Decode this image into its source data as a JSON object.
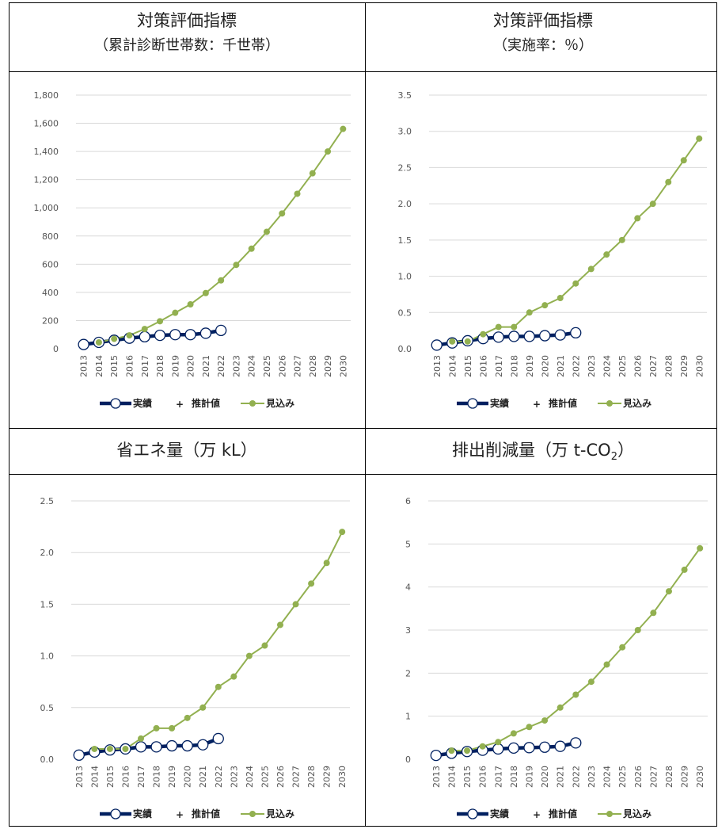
{
  "panels": [
    {
      "title": "対策評価指標",
      "subtitle": "（累計診断世帯数：千世帯）"
    },
    {
      "title": "対策評価指標",
      "subtitle": "（実施率：％）"
    },
    {
      "title": "省エネ量（万 kL）",
      "subtitle": ""
    },
    {
      "title_main": "排出削減量（万 t-CO",
      "title_sub": "2",
      "title_end": "）",
      "subtitle": ""
    }
  ],
  "legend": {
    "actual": "実績",
    "estimate": "推計値",
    "projection": "見込み"
  },
  "colors": {
    "actual": "#002060",
    "projection": "#92B050"
  },
  "chart_data": [
    {
      "type": "line",
      "x": [
        "2013",
        "2014",
        "2015",
        "2016",
        "2017",
        "2018",
        "2019",
        "2020",
        "2021",
        "2022",
        "2023",
        "2024",
        "2025",
        "2026",
        "2027",
        "2028",
        "2029",
        "2030"
      ],
      "ylim": [
        0,
        1800
      ],
      "yticks": [
        "0",
        "200",
        "400",
        "600",
        "800",
        "1,000",
        "1,200",
        "1,400",
        "1,600",
        "1,800"
      ],
      "ytick_values": [
        0,
        200,
        400,
        600,
        800,
        1000,
        1200,
        1400,
        1600,
        1800
      ],
      "series": [
        {
          "name": "実績",
          "values": [
            30,
            45,
            60,
            75,
            85,
            95,
            100,
            100,
            110,
            130,
            null,
            null,
            null,
            null,
            null,
            null,
            null,
            null
          ]
        },
        {
          "name": "見込み",
          "values": [
            null,
            45,
            70,
            95,
            140,
            195,
            255,
            315,
            395,
            485,
            595,
            710,
            830,
            960,
            1100,
            1245,
            1400,
            1560
          ]
        }
      ]
    },
    {
      "type": "line",
      "x": [
        "2013",
        "2014",
        "2015",
        "2016",
        "2017",
        "2018",
        "2019",
        "2020",
        "2021",
        "2022",
        "2023",
        "2024",
        "2025",
        "2026",
        "2027",
        "2028",
        "2029",
        "2030"
      ],
      "ylim": [
        0,
        3.5
      ],
      "yticks": [
        "0.0",
        "0.5",
        "1.0",
        "1.5",
        "2.0",
        "2.5",
        "3.0",
        "3.5"
      ],
      "ytick_values": [
        0,
        0.5,
        1.0,
        1.5,
        2.0,
        2.5,
        3.0,
        3.5
      ],
      "series": [
        {
          "name": "実績",
          "values": [
            0.05,
            0.08,
            0.11,
            0.14,
            0.16,
            0.17,
            0.17,
            0.18,
            0.19,
            0.22,
            null,
            null,
            null,
            null,
            null,
            null,
            null,
            null
          ]
        },
        {
          "name": "見込み",
          "values": [
            null,
            0.1,
            0.1,
            0.2,
            0.3,
            0.3,
            0.5,
            0.6,
            0.7,
            0.9,
            1.1,
            1.3,
            1.5,
            1.8,
            2.0,
            2.3,
            2.6,
            2.9
          ]
        }
      ]
    },
    {
      "type": "line",
      "x": [
        "2013",
        "2014",
        "2015",
        "2016",
        "2017",
        "2018",
        "2019",
        "2020",
        "2021",
        "2022",
        "2023",
        "2024",
        "2025",
        "2026",
        "2027",
        "2028",
        "2029",
        "2030"
      ],
      "ylim": [
        0,
        2.5
      ],
      "yticks": [
        "0.0",
        "0.5",
        "1.0",
        "1.5",
        "2.0",
        "2.5"
      ],
      "ytick_values": [
        0,
        0.5,
        1.0,
        1.5,
        2.0,
        2.5
      ],
      "series": [
        {
          "name": "実績",
          "values": [
            0.04,
            0.07,
            0.09,
            0.1,
            0.12,
            0.12,
            0.13,
            0.13,
            0.14,
            0.2,
            null,
            null,
            null,
            null,
            null,
            null,
            null,
            null
          ]
        },
        {
          "name": "見込み",
          "values": [
            null,
            0.1,
            0.1,
            0.1,
            0.2,
            0.3,
            0.3,
            0.4,
            0.5,
            0.7,
            0.8,
            1.0,
            1.1,
            1.3,
            1.5,
            1.7,
            1.9,
            2.2
          ]
        }
      ]
    },
    {
      "type": "line",
      "x": [
        "2013",
        "2014",
        "2015",
        "2016",
        "2017",
        "2018",
        "2019",
        "2020",
        "2021",
        "2022",
        "2023",
        "2024",
        "2025",
        "2026",
        "2027",
        "2028",
        "2029",
        "2030"
      ],
      "ylim": [
        0,
        6
      ],
      "yticks": [
        "0",
        "1",
        "2",
        "3",
        "4",
        "5",
        "6"
      ],
      "ytick_values": [
        0,
        1,
        2,
        3,
        4,
        5,
        6
      ],
      "series": [
        {
          "name": "実績",
          "values": [
            0.09,
            0.14,
            0.18,
            0.21,
            0.24,
            0.26,
            0.27,
            0.28,
            0.3,
            0.38,
            null,
            null,
            null,
            null,
            null,
            null,
            null,
            null
          ]
        },
        {
          "name": "見込み",
          "values": [
            null,
            0.2,
            0.2,
            0.3,
            0.4,
            0.6,
            0.75,
            0.9,
            1.2,
            1.5,
            1.8,
            2.2,
            2.6,
            3.0,
            3.4,
            3.9,
            4.4,
            4.9
          ]
        }
      ]
    }
  ]
}
